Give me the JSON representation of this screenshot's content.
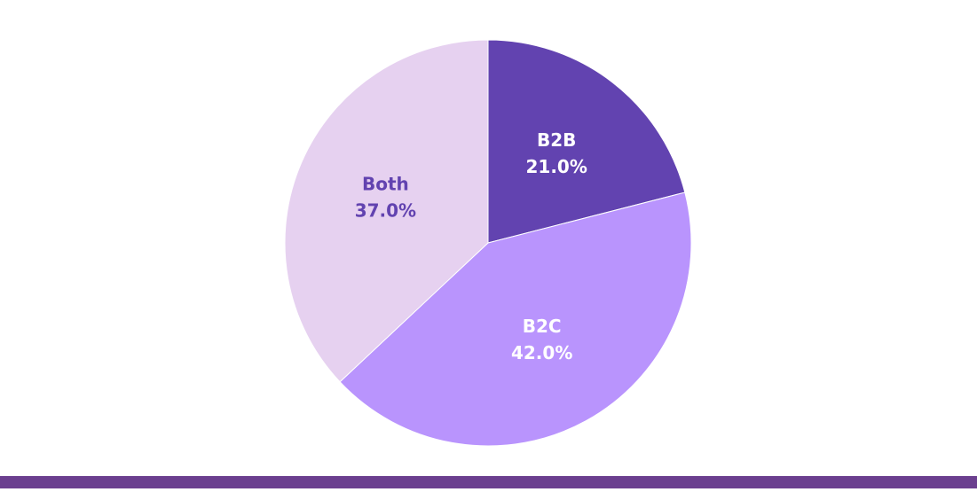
{
  "chart_data": {
    "type": "pie",
    "categories": [
      "B2B",
      "B2C",
      "Both"
    ],
    "values": [
      21,
      42,
      37
    ],
    "value_labels": [
      "21.0%",
      "42.0%",
      "37.0%"
    ],
    "colors": [
      "#6243b0",
      "#b994fd",
      "#e6d1f0"
    ],
    "label_colors": [
      "#ffffff",
      "#ffffff",
      "#6243b0"
    ]
  }
}
